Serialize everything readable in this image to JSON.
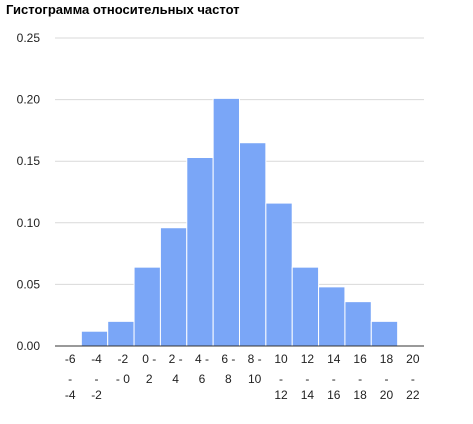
{
  "chart_data": {
    "type": "bar",
    "title": "Гистограмма относительных частот",
    "xlabel": "",
    "ylabel": "",
    "ylim": [
      0,
      0.25
    ],
    "yticks": [
      "0.00",
      "0.05",
      "0.10",
      "0.15",
      "0.20",
      "0.25"
    ],
    "grid": true,
    "legend": "none",
    "colors": {
      "bar": "#7aa6f7",
      "bar_edge": "#ffffff",
      "grid": "#d9d9d9",
      "baseline": "#333333"
    },
    "categories": [
      [
        "-6",
        "-",
        "-4"
      ],
      [
        "-4",
        "-",
        "-2"
      ],
      [
        "-2",
        "- 0"
      ],
      [
        "0 -",
        "2"
      ],
      [
        "2 -",
        "4"
      ],
      [
        "4 -",
        "6"
      ],
      [
        "6 -",
        "8"
      ],
      [
        "8 -",
        "10"
      ],
      [
        "10",
        "-",
        "12"
      ],
      [
        "12",
        "-",
        "14"
      ],
      [
        "14",
        "-",
        "16"
      ],
      [
        "16",
        "-",
        "18"
      ],
      [
        "18",
        "-",
        "20"
      ],
      [
        "20",
        "-",
        "22"
      ]
    ],
    "values": [
      0.0,
      0.012,
      0.02,
      0.064,
      0.096,
      0.153,
      0.201,
      0.165,
      0.116,
      0.064,
      0.048,
      0.036,
      0.02,
      0.0
    ]
  }
}
